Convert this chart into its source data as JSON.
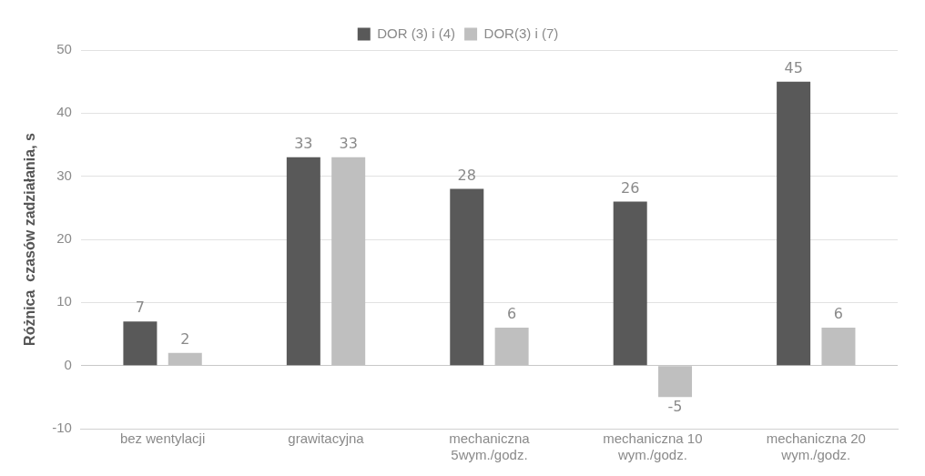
{
  "chart_data": {
    "type": "bar",
    "ylabel": "Różnica  czasów zadziałania, s",
    "categories": [
      "bez wentylacji",
      "grawitacyjna",
      "mechaniczna 5wym./godz.",
      "mechaniczna 10 wym./godz.",
      "mechaniczna 20 wym./godz."
    ],
    "series": [
      {
        "name": "DOR (3) i (4)",
        "color": "#595959",
        "values": [
          7,
          33,
          28,
          26,
          45
        ]
      },
      {
        "name": "DOR(3) i (7)",
        "color": "#bfbfbf",
        "values": [
          2,
          33,
          6,
          -5,
          6
        ]
      }
    ],
    "ylim": [
      -10,
      50
    ],
    "yticks": [
      -10,
      0,
      10,
      20,
      30,
      40,
      50
    ],
    "grid": "y",
    "legend": "top",
    "data_labels": true
  }
}
